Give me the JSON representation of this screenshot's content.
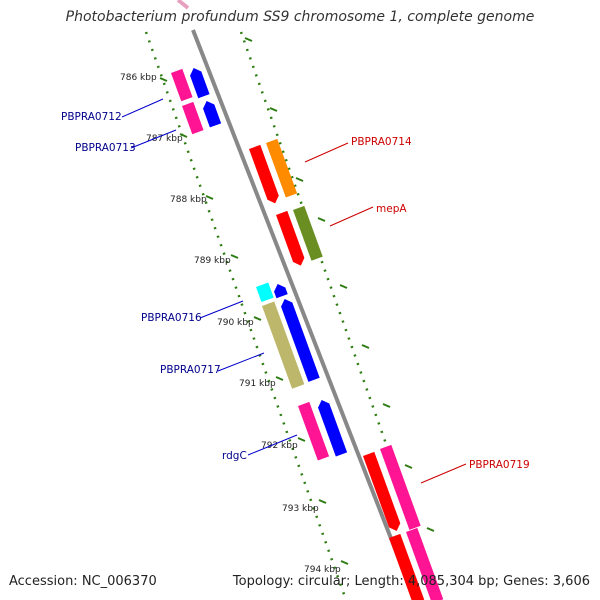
{
  "title": "Photobacterium profundum SS9 chromosome 1, complete genome",
  "footer": {
    "accession": "Accession: NC_006370",
    "summary": "Topology: circular; Length: 4,085,304 bp; Genes: 3,606"
  },
  "ticks": [
    "786 kbp",
    "787 kbp",
    "788 kbp",
    "789 kbp",
    "790 kbp",
    "791 kbp",
    "792 kbp",
    "793 kbp",
    "794 kbp"
  ],
  "labels": {
    "PBPRA0712": "PBPRA0712",
    "PBPRA0713": "PBPRA0713",
    "PBPRA0714": "PBPRA0714",
    "mepA": "mepA",
    "PBPRA0716": "PBPRA0716",
    "PBPRA0717": "PBPRA0717",
    "rdgC": "rdgC",
    "PBPRA0719": "PBPRA0719"
  },
  "colors": {
    "backbone": "#888888",
    "ruler": "#2e7d12",
    "label_reverse": "#00008b",
    "label_forward": "#cc0000",
    "red": "#ff0000",
    "orange": "#ff8c00",
    "olive": "#6b8e23",
    "magenta": "#ff1493",
    "blue": "#0000ff",
    "cyan": "#00ffff",
    "khaki": "#bdb76b"
  }
}
